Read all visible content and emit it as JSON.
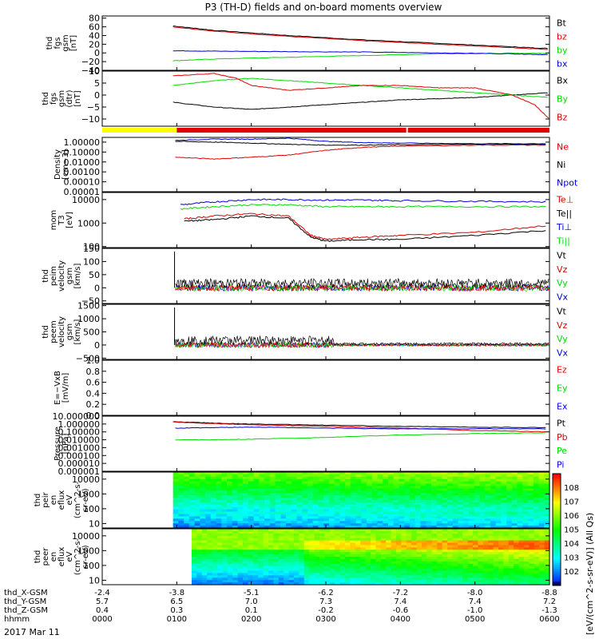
{
  "title": "P3 (TH-D) fields and on-board moments overview",
  "date_label": "2017 Mar 11",
  "colorbar_label": "[eV/(cm^2-s-sr-eV)] (All Qs)",
  "colorbar_ticks": [
    "10^8",
    "10^7",
    "10^6",
    "10^5",
    "10^4",
    "10^3",
    "10^2"
  ],
  "ephemeris": {
    "rows": [
      {
        "label": "thd_X-GSM",
        "values": [
          "-2.4",
          "-3.8",
          "-5.1",
          "-6.2",
          "-7.2",
          "-8.0",
          "-8.8"
        ]
      },
      {
        "label": "thd_Y-GSM",
        "values": [
          "5.7",
          "6.5",
          "7.0",
          "7.3",
          "7.4",
          "7.4",
          "7.2"
        ]
      },
      {
        "label": "thd_Z-GSM",
        "values": [
          "0.4",
          "0.3",
          "0.1",
          "-0.2",
          "-0.6",
          "-1.0",
          "-1.3"
        ]
      },
      {
        "label": "hhmm",
        "values": [
          "0000",
          "0100",
          "0200",
          "0300",
          "0400",
          "0500",
          "0600"
        ]
      }
    ]
  },
  "colors": {
    "black": "#000000",
    "red": "#e00000",
    "blue": "#0000e0",
    "green": "#00dd00",
    "yellow": "#ffff00",
    "white": "#ffffff"
  },
  "chart_data": [
    {
      "type": "line",
      "ylabel": [
        "thd",
        "fgs",
        "gsm",
        "[nT]"
      ],
      "yticks": [
        "80",
        "60",
        "40",
        "20",
        "0",
        "−20",
        "−40"
      ],
      "ylim": [
        -40,
        85
      ],
      "legend": [
        {
          "name": "Bt",
          "color": "black"
        },
        {
          "name": "bz",
          "color": "red"
        },
        {
          "name": "by",
          "color": "green"
        },
        {
          "name": "bx",
          "color": "blue"
        }
      ],
      "series": [
        {
          "name": "Bt",
          "color": "black",
          "x": [
            0.95,
            1.5,
            2.5,
            3.5,
            4.5,
            5.5,
            6
          ],
          "y": [
            62,
            52,
            40,
            30,
            22,
            14,
            10
          ]
        },
        {
          "name": "bz",
          "color": "red",
          "x": [
            0.95,
            1.5,
            2.5,
            3.5,
            4.5,
            5.5,
            6
          ],
          "y": [
            60,
            50,
            38,
            28,
            20,
            12,
            8
          ]
        },
        {
          "name": "by",
          "color": "green",
          "x": [
            0.95,
            1.5,
            2.5,
            3.5,
            4.5,
            5.5,
            6
          ],
          "y": [
            -18,
            -14,
            -10,
            -6,
            -2,
            -1,
            -1
          ]
        },
        {
          "name": "bx",
          "color": "blue",
          "x": [
            0.95,
            1.5,
            2.5,
            3.5,
            4.5,
            5.5,
            6
          ],
          "y": [
            5,
            4,
            3,
            2,
            0,
            -2,
            -4
          ]
        }
      ]
    },
    {
      "type": "line",
      "ylabel": [
        "thd",
        "fgs",
        "gsm",
        "(dtr)",
        "[nT]"
      ],
      "yticks": [
        "10",
        "5",
        "0",
        "−5",
        "−10"
      ],
      "ylim": [
        -13,
        10
      ],
      "legend": [
        {
          "name": "Bx",
          "color": "black"
        },
        {
          "name": "By",
          "color": "green"
        },
        {
          "name": "Bz",
          "color": "red"
        }
      ],
      "series": [
        {
          "name": "Bx",
          "color": "black",
          "x": [
            0.95,
            1.5,
            2,
            2.5,
            3,
            3.5,
            4,
            4.5,
            5,
            5.5,
            6
          ],
          "y": [
            -3,
            -5,
            -6,
            -5,
            -4,
            -3,
            -2,
            -1.5,
            -1,
            0,
            1
          ]
        },
        {
          "name": "By",
          "color": "green",
          "x": [
            0.95,
            1.5,
            2,
            2.5,
            3,
            3.5,
            4,
            4.5,
            5,
            5.5,
            6
          ],
          "y": [
            4,
            6,
            7,
            6,
            5,
            4,
            3,
            2,
            1,
            0,
            -1
          ]
        },
        {
          "name": "Bz",
          "color": "red",
          "x": [
            0.95,
            1.5,
            1.8,
            2,
            2.5,
            3,
            3.5,
            4,
            4.5,
            5,
            5.5,
            5.8,
            6
          ],
          "y": [
            8,
            9,
            7,
            4,
            2,
            3,
            4,
            4,
            3,
            3,
            0,
            -4,
            -10
          ]
        }
      ]
    },
    {
      "type": "bar",
      "name": "mode_bar",
      "segments": [
        {
          "x0": 0,
          "x1": 1,
          "color": "yellow"
        },
        {
          "x0": 1,
          "x1": 4.1,
          "color": "red"
        },
        {
          "x0": 4.1,
          "x1": 6,
          "color": "red"
        }
      ]
    },
    {
      "type": "line",
      "scale": "log",
      "ylabel": [
        "Density",
        "[cm−3]"
      ],
      "yticks": [
        "1.00000",
        "0.10000",
        "0.01000",
        "0.00100",
        "0.00010",
        "0.00001"
      ],
      "ylim": [
        1e-05,
        3
      ],
      "legend": [
        {
          "name": "Ne",
          "color": "red"
        },
        {
          "name": "Ni",
          "color": "black"
        },
        {
          "name": "Npot",
          "color": "blue"
        }
      ],
      "series": [
        {
          "name": "Npot",
          "color": "blue",
          "x": [
            0.98,
            1.5,
            2,
            2.5,
            3,
            3.5,
            4,
            5,
            6
          ],
          "y": [
            1.5,
            2,
            2,
            2.5,
            1.2,
            0.9,
            0.8,
            0.7,
            0.7
          ]
        },
        {
          "name": "Ni",
          "color": "black",
          "x": [
            0.98,
            1.5,
            2,
            2.5,
            3,
            3.5,
            4,
            5,
            6
          ],
          "y": [
            1.2,
            1,
            0.8,
            0.6,
            0.5,
            0.5,
            0.55,
            0.6,
            0.6
          ]
        },
        {
          "name": "Ne",
          "color": "red",
          "x": [
            0.98,
            1.5,
            2,
            2.5,
            3,
            3.5,
            4,
            5,
            6
          ],
          "y": [
            0.03,
            0.02,
            0.03,
            0.05,
            0.15,
            0.3,
            0.4,
            0.5,
            0.5
          ]
        }
      ]
    },
    {
      "type": "line",
      "scale": "log",
      "ylabel": [
        "mom",
        "T3",
        "[eV]"
      ],
      "yticks": [
        "10000",
        "1000",
        "100"
      ],
      "ylim": [
        90,
        20000
      ],
      "legend": [
        {
          "name": "Te⊥",
          "color": "red"
        },
        {
          "name": "Te||",
          "color": "black"
        },
        {
          "name": "Ti⊥",
          "color": "blue"
        },
        {
          "name": "Ti||",
          "color": "green"
        }
      ],
      "series": [
        {
          "name": "Ti⊥",
          "color": "blue",
          "x": [
            1.05,
            1.5,
            2,
            2.5,
            3,
            3.5,
            4,
            5,
            6
          ],
          "y": [
            6000,
            8000,
            10000,
            10000,
            9500,
            9500,
            9000,
            8500,
            8000
          ]
        },
        {
          "name": "Ti||",
          "color": "green",
          "x": [
            1.05,
            1.5,
            2,
            2.5,
            3,
            3.5,
            4,
            5,
            6
          ],
          "y": [
            4000,
            5000,
            6000,
            6000,
            5000,
            5000,
            5000,
            5000,
            5000
          ]
        },
        {
          "name": "Te⊥",
          "color": "red",
          "x": [
            1.1,
            1.5,
            2,
            2.5,
            2.8,
            3,
            3.5,
            4,
            5,
            6
          ],
          "y": [
            1500,
            2000,
            2500,
            2000,
            300,
            200,
            250,
            300,
            400,
            800
          ]
        },
        {
          "name": "Te||",
          "color": "black",
          "x": [
            1.1,
            1.5,
            2,
            2.5,
            2.8,
            3,
            3.5,
            4,
            5,
            6
          ],
          "y": [
            1200,
            1400,
            2000,
            1600,
            250,
            170,
            200,
            200,
            300,
            500
          ]
        }
      ]
    },
    {
      "type": "line",
      "ylabel": [
        "thd",
        "peim",
        "velocity",
        "gsm",
        "[km/s]"
      ],
      "yticks": [
        "150",
        "100",
        "50",
        "0",
        "−50"
      ],
      "ylim": [
        -60,
        150
      ],
      "legend": [
        {
          "name": "Vt",
          "color": "black"
        },
        {
          "name": "Vz",
          "color": "red"
        },
        {
          "name": "Vy",
          "color": "green"
        },
        {
          "name": "Vx",
          "color": "blue"
        }
      ]
    },
    {
      "type": "line",
      "ylabel": [
        "thd",
        "peem",
        "velocity",
        "gsm",
        "[km/s]"
      ],
      "yticks": [
        "1500",
        "1000",
        "500",
        "0",
        "−500"
      ],
      "ylim": [
        -550,
        1550
      ],
      "legend": [
        {
          "name": "Vt",
          "color": "black"
        },
        {
          "name": "Vz",
          "color": "red"
        },
        {
          "name": "Vy",
          "color": "green"
        },
        {
          "name": "Vx",
          "color": "blue"
        }
      ]
    },
    {
      "type": "line",
      "ylabel": [
        "E=−VxB",
        "[mV/m]"
      ],
      "yticks": [
        "1.0",
        "0.8",
        "0.6",
        "0.4",
        "0.2",
        "0.0"
      ],
      "ylim": [
        0,
        1
      ],
      "legend": [
        {
          "name": "Ez",
          "color": "red"
        },
        {
          "name": "Ey",
          "color": "green"
        },
        {
          "name": "Ex",
          "color": "blue"
        }
      ],
      "series": []
    },
    {
      "type": "line",
      "scale": "log",
      "ylabel": [
        "Pressure",
        "[nPa]"
      ],
      "yticks": [
        "10.000000",
        "1.000000",
        "0.100000",
        "0.010000",
        "0.001000",
        "0.000100",
        "0.000010",
        "0.000001"
      ],
      "ylim": [
        1e-06,
        10
      ],
      "legend": [
        {
          "name": "Pt",
          "color": "black"
        },
        {
          "name": "Pb",
          "color": "red"
        },
        {
          "name": "Pe",
          "color": "green"
        },
        {
          "name": "Pi",
          "color": "blue"
        }
      ],
      "series": [
        {
          "name": "Pt",
          "color": "black",
          "x": [
            0.95,
            1.5,
            2,
            3,
            4,
            5,
            6
          ],
          "y": [
            2,
            1.3,
            1,
            0.7,
            0.5,
            0.4,
            0.35
          ]
        },
        {
          "name": "Pb",
          "color": "red",
          "x": [
            0.95,
            1.5,
            2,
            3,
            4,
            5,
            6
          ],
          "y": [
            1.8,
            1.1,
            0.8,
            0.5,
            0.3,
            0.15,
            0.1
          ]
        },
        {
          "name": "Pi",
          "color": "blue",
          "x": [
            0.98,
            1.5,
            2,
            3,
            4,
            5,
            6
          ],
          "y": [
            0.3,
            0.35,
            0.4,
            0.3,
            0.25,
            0.25,
            0.25
          ]
        },
        {
          "name": "Pe",
          "color": "green",
          "x": [
            0.98,
            1.5,
            2,
            3,
            4,
            5,
            6
          ],
          "y": [
            0.01,
            0.01,
            0.012,
            0.02,
            0.04,
            0.06,
            0.08
          ]
        }
      ]
    },
    {
      "type": "heatmap",
      "ylabel": [
        "thd",
        "peir",
        "en",
        "eflux",
        "eV",
        "(cm^2-s-",
        "sr-eV)"
      ],
      "yticks": [
        "10000",
        "1000",
        "100",
        "10"
      ],
      "ylim": [
        5,
        30000
      ],
      "xstart": 0.95
    },
    {
      "type": "heatmap",
      "ylabel": [
        "thd",
        "peer",
        "en",
        "eflux",
        "eV",
        "(cm^2-s-",
        "sr-eV)"
      ],
      "yticks": [
        "10000",
        "1000",
        "100",
        "10"
      ],
      "ylim": [
        5,
        30000
      ],
      "xstart": 1.2
    }
  ]
}
